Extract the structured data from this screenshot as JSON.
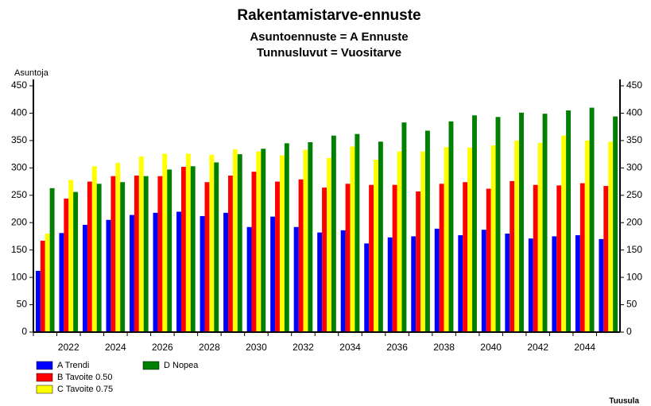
{
  "chart_data": {
    "type": "bar",
    "title": "Rakentamistarve-ennuste",
    "subtitle": [
      "Asuntoennuste = A Ennuste",
      "Tunnusluvut = Vuositarve"
    ],
    "ylabel": "Asuntoja",
    "source": "Tuusula",
    "categories": [
      null,
      "2022",
      null,
      "2024",
      null,
      "2026",
      null,
      "2028",
      null,
      "2030",
      null,
      "2032",
      null,
      "2034",
      null,
      "2036",
      null,
      "2038",
      null,
      "2040",
      null,
      "2042",
      null,
      "2044",
      null
    ],
    "series": [
      {
        "name": "A Trendi",
        "color": "#0000ff",
        "values": [
          112,
          181,
          196,
          205,
          214,
          218,
          220,
          212,
          218,
          192,
          211,
          192,
          182,
          186,
          162,
          173,
          175,
          189,
          177,
          187,
          180,
          171,
          175,
          177,
          170
        ]
      },
      {
        "name": "B Tavoite 0.50",
        "color": "#ff0000",
        "values": [
          167,
          244,
          275,
          285,
          286,
          285,
          302,
          274,
          286,
          293,
          275,
          279,
          264,
          271,
          269,
          269,
          257,
          271,
          274,
          262,
          276,
          269,
          268,
          272,
          267
        ]
      },
      {
        "name": "C Tavoite 0.75",
        "color": "#ffff00",
        "values": [
          180,
          278,
          303,
          309,
          321,
          326,
          326,
          324,
          334,
          330,
          323,
          333,
          318,
          339,
          315,
          330,
          330,
          338,
          337,
          341,
          350,
          346,
          359,
          350,
          348
        ]
      },
      {
        "name": "D Nopea",
        "color": "#008000",
        "values": [
          263,
          256,
          271,
          274,
          285,
          297,
          303,
          310,
          325,
          335,
          345,
          347,
          359,
          362,
          348,
          383,
          368,
          385,
          396,
          393,
          401,
          399,
          405,
          410,
          394
        ]
      }
    ],
    "ylim": [
      0,
      450
    ],
    "yticks": [
      0,
      50,
      100,
      150,
      200,
      250,
      300,
      350,
      400,
      450
    ],
    "y2lim": [
      0,
      450
    ],
    "y2ticks": [
      0,
      50,
      100,
      150,
      200,
      250,
      300,
      350,
      400,
      450
    ]
  }
}
